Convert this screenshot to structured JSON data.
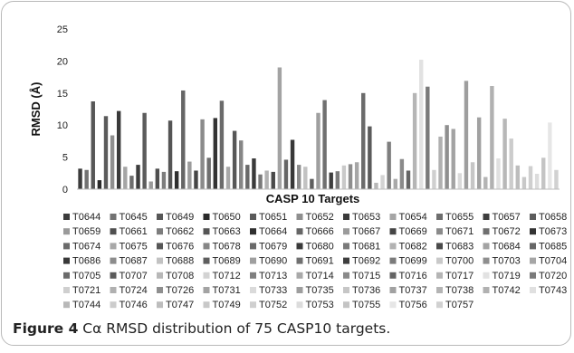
{
  "chart_data": {
    "type": "bar",
    "xlabel": "CASP 10 Targets",
    "ylabel": "RMSD (Å)",
    "ylim": [
      0,
      25
    ],
    "yticks": [
      0,
      5,
      10,
      15,
      20,
      25
    ],
    "grid": false,
    "legend_placement": "bottom",
    "series": [
      {
        "name": "T0644",
        "value": 3.2,
        "color": "#3c3c3c"
      },
      {
        "name": "T0645",
        "value": 3.0,
        "color": "#727272"
      },
      {
        "name": "T0649",
        "value": 13.7,
        "color": "#575757"
      },
      {
        "name": "T0650",
        "value": 1.4,
        "color": "#2a2a2a"
      },
      {
        "name": "T0651",
        "value": 11.4,
        "color": "#5a5a5a"
      },
      {
        "name": "T0652",
        "value": 8.4,
        "color": "#8f8f8f"
      },
      {
        "name": "T0653",
        "value": 12.2,
        "color": "#3a3a3a"
      },
      {
        "name": "T0654",
        "value": 3.5,
        "color": "#a5a5a5"
      },
      {
        "name": "T0655",
        "value": 2.1,
        "color": "#6e6e6e"
      },
      {
        "name": "T0657",
        "value": 3.8,
        "color": "#3d3d3d"
      },
      {
        "name": "T0658",
        "value": 11.9,
        "color": "#5c5c5c"
      },
      {
        "name": "T0659",
        "value": 1.2,
        "color": "#9a9a9a"
      },
      {
        "name": "T0661",
        "value": 3.2,
        "color": "#4f4f4f"
      },
      {
        "name": "T0662",
        "value": 2.7,
        "color": "#7d7d7d"
      },
      {
        "name": "T0663",
        "value": 10.7,
        "color": "#555555"
      },
      {
        "name": "T0664",
        "value": 2.8,
        "color": "#2f2f2f"
      },
      {
        "name": "T0666",
        "value": 15.4,
        "color": "#666666"
      },
      {
        "name": "T0667",
        "value": 4.3,
        "color": "#9b9b9b"
      },
      {
        "name": "T0669",
        "value": 2.9,
        "color": "#454545"
      },
      {
        "name": "T0671",
        "value": 10.9,
        "color": "#8b8b8b"
      },
      {
        "name": "T0672",
        "value": 4.9,
        "color": "#6f6f6f"
      },
      {
        "name": "T0673",
        "value": 11.1,
        "color": "#333333"
      },
      {
        "name": "T0674",
        "value": 13.8,
        "color": "#6b6b6b"
      },
      {
        "name": "T0675",
        "value": 3.5,
        "color": "#a8a8a8"
      },
      {
        "name": "T0676",
        "value": 9.1,
        "color": "#575757"
      },
      {
        "name": "T0678",
        "value": 7.6,
        "color": "#868686"
      },
      {
        "name": "T0679",
        "value": 3.8,
        "color": "#6a6a6a"
      },
      {
        "name": "T0680",
        "value": 4.8,
        "color": "#3a3a3a"
      },
      {
        "name": "T0681",
        "value": 2.3,
        "color": "#7a7a7a"
      },
      {
        "name": "T0682",
        "value": 2.9,
        "color": "#b2b2b2"
      },
      {
        "name": "T0683",
        "value": 2.7,
        "color": "#4a4a4a"
      },
      {
        "name": "T0684",
        "value": 19.0,
        "color": "#a3a3a3"
      },
      {
        "name": "T0685",
        "value": 4.6,
        "color": "#666666"
      },
      {
        "name": "T0686",
        "value": 7.7,
        "color": "#383838"
      },
      {
        "name": "T0687",
        "value": 3.8,
        "color": "#8c8c8c"
      },
      {
        "name": "T0688",
        "value": 3.5,
        "color": "#c2c2c2"
      },
      {
        "name": "T0689",
        "value": 1.6,
        "color": "#5e5e5e"
      },
      {
        "name": "T0690",
        "value": 11.9,
        "color": "#9f9f9f"
      },
      {
        "name": "T0691",
        "value": 13.9,
        "color": "#707070"
      },
      {
        "name": "T0692",
        "value": 2.6,
        "color": "#3e3e3e"
      },
      {
        "name": "T0699",
        "value": 2.8,
        "color": "#7b7b7b"
      },
      {
        "name": "T0700",
        "value": 3.7,
        "color": "#c9c9c9"
      },
      {
        "name": "T0703",
        "value": 3.9,
        "color": "#8e8e8e"
      },
      {
        "name": "T0704",
        "value": 4.2,
        "color": "#a6a6a6"
      },
      {
        "name": "T0705",
        "value": 15.0,
        "color": "#6b6b6b"
      },
      {
        "name": "T0707",
        "value": 9.8,
        "color": "#5b5b5b"
      },
      {
        "name": "T0708",
        "value": 1.0,
        "color": "#b8b8b8"
      },
      {
        "name": "T0712",
        "value": 2.2,
        "color": "#d3d3d3"
      },
      {
        "name": "T0713",
        "value": 7.4,
        "color": "#7f7f7f"
      },
      {
        "name": "T0714",
        "value": 1.6,
        "color": "#a9a9a9"
      },
      {
        "name": "T0715",
        "value": 4.7,
        "color": "#8a8a8a"
      },
      {
        "name": "T0716",
        "value": 2.9,
        "color": "#646464"
      },
      {
        "name": "T0717",
        "value": 15.0,
        "color": "#b5b5b5"
      },
      {
        "name": "T0719",
        "value": 20.2,
        "color": "#e2e2e2"
      },
      {
        "name": "T0720",
        "value": 16.0,
        "color": "#7a7a7a"
      },
      {
        "name": "T0721",
        "value": 3.0,
        "color": "#cfcfcf"
      },
      {
        "name": "T0724",
        "value": 8.2,
        "color": "#b0b0b0"
      },
      {
        "name": "T0726",
        "value": 10.0,
        "color": "#8f8f8f"
      },
      {
        "name": "T0731",
        "value": 9.4,
        "color": "#a3a3a3"
      },
      {
        "name": "T0733",
        "value": 2.5,
        "color": "#dadada"
      },
      {
        "name": "T0735",
        "value": 16.9,
        "color": "#9e9e9e"
      },
      {
        "name": "T0736",
        "value": 4.2,
        "color": "#c6c6c6"
      },
      {
        "name": "T0737",
        "value": 11.2,
        "color": "#a1a1a1"
      },
      {
        "name": "T0738",
        "value": 1.9,
        "color": "#b4b4b4"
      },
      {
        "name": "T0742",
        "value": 16.1,
        "color": "#b1b1b1"
      },
      {
        "name": "T0743",
        "value": 4.8,
        "color": "#e0e0e0"
      },
      {
        "name": "T0744",
        "value": 11.0,
        "color": "#b8b8b8"
      },
      {
        "name": "T0746",
        "value": 7.9,
        "color": "#cccccc"
      },
      {
        "name": "T0747",
        "value": 3.7,
        "color": "#bdbdbd"
      },
      {
        "name": "T0749",
        "value": 1.9,
        "color": "#c8c8c8"
      },
      {
        "name": "T0752",
        "value": 3.6,
        "color": "#cfcfcf"
      },
      {
        "name": "T0753",
        "value": 2.4,
        "color": "#dcdcdc"
      },
      {
        "name": "T0755",
        "value": 4.9,
        "color": "#c4c4c4"
      },
      {
        "name": "T0756",
        "value": 10.4,
        "color": "#e6e6e6"
      },
      {
        "name": "T0757",
        "value": 3.0,
        "color": "#d1d1d1"
      }
    ]
  },
  "caption": {
    "label": "Figure 4",
    "text": " Cα RMSD distribution of 75 CASP10 targets."
  }
}
